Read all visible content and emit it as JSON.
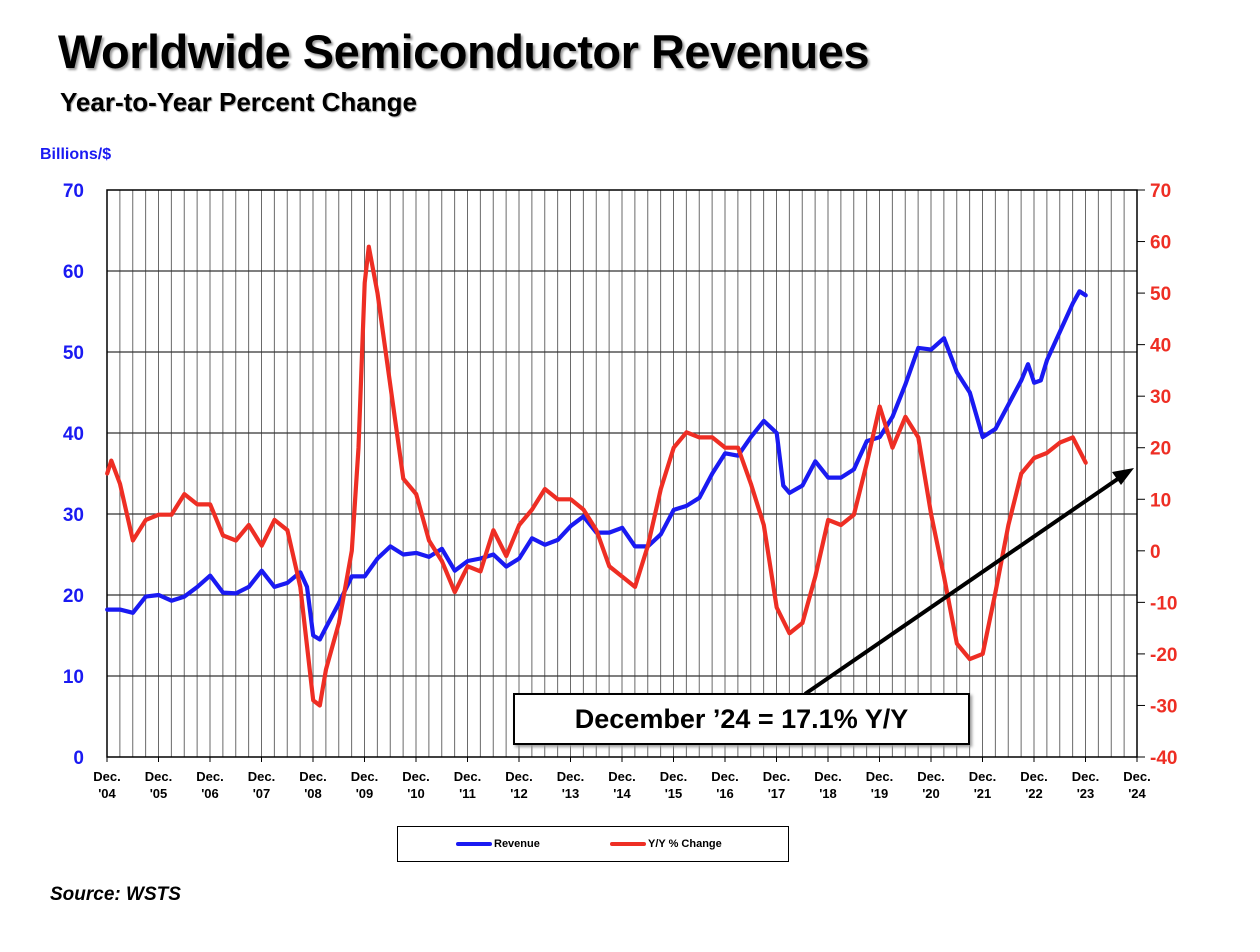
{
  "title": "Worldwide Semiconductor Revenues",
  "subtitle": "Year-to-Year Percent Change",
  "unit_label": "Billions/$",
  "source": "Source: WSTS",
  "callout": "December ’24 = 17.1% Y/Y",
  "legend": {
    "revenue": "Revenue",
    "yoy": "Y/Y % Change"
  },
  "colors": {
    "revenue": "#1a1af2",
    "yoy": "#ee2e24",
    "grid": "#555555"
  },
  "chart_data": {
    "type": "line",
    "title": "Worldwide Semiconductor Revenues",
    "subtitle": "Year-to-Year Percent Change",
    "grid": true,
    "legend_position": "bottom",
    "x_ticks": [
      {
        "line1": "Dec.",
        "line2": "'04"
      },
      {
        "line1": "Dec.",
        "line2": "'05"
      },
      {
        "line1": "Dec.",
        "line2": "'06"
      },
      {
        "line1": "Dec.",
        "line2": "'07"
      },
      {
        "line1": "Dec.",
        "line2": "'08"
      },
      {
        "line1": "Dec.",
        "line2": "'09"
      },
      {
        "line1": "Dec.",
        "line2": "'10"
      },
      {
        "line1": "Dec.",
        "line2": "'11"
      },
      {
        "line1": "Dec.",
        "line2": "'12"
      },
      {
        "line1": "Dec.",
        "line2": "'13"
      },
      {
        "line1": "Dec.",
        "line2": "'14"
      },
      {
        "line1": "Dec.",
        "line2": "'15"
      },
      {
        "line1": "Dec.",
        "line2": "'16"
      },
      {
        "line1": "Dec.",
        "line2": "'17"
      },
      {
        "line1": "Dec.",
        "line2": "'18"
      },
      {
        "line1": "Dec.",
        "line2": "'19"
      },
      {
        "line1": "Dec.",
        "line2": "'20"
      },
      {
        "line1": "Dec.",
        "line2": "'21"
      },
      {
        "line1": "Dec.",
        "line2": "'22"
      },
      {
        "line1": "Dec.",
        "line2": "'23"
      },
      {
        "line1": "Dec.",
        "line2": "'24"
      }
    ],
    "y_left": {
      "label": "Billions/$",
      "range": [
        0,
        70
      ],
      "ticks": [
        0,
        10,
        20,
        30,
        40,
        50,
        60,
        70
      ]
    },
    "y_right": {
      "range": [
        -40,
        70
      ],
      "ticks": [
        -40,
        -30,
        -20,
        -10,
        0,
        10,
        20,
        30,
        40,
        50,
        60,
        70
      ]
    },
    "x_range": [
      2004.917,
      2024.917
    ],
    "series": [
      {
        "name": "Revenue",
        "axis": "left",
        "points": [
          [
            2004.92,
            18.2
          ],
          [
            2005.17,
            18.2
          ],
          [
            2005.42,
            17.8
          ],
          [
            2005.67,
            19.8
          ],
          [
            2005.92,
            20.0
          ],
          [
            2006.17,
            19.3
          ],
          [
            2006.42,
            19.8
          ],
          [
            2006.67,
            21.0
          ],
          [
            2006.92,
            22.4
          ],
          [
            2007.17,
            20.3
          ],
          [
            2007.42,
            20.2
          ],
          [
            2007.67,
            21.0
          ],
          [
            2007.92,
            23.0
          ],
          [
            2008.17,
            21.0
          ],
          [
            2008.42,
            21.5
          ],
          [
            2008.67,
            22.8
          ],
          [
            2008.8,
            21.0
          ],
          [
            2008.92,
            15.0
          ],
          [
            2009.05,
            14.5
          ],
          [
            2009.17,
            16.0
          ],
          [
            2009.42,
            19.0
          ],
          [
            2009.67,
            22.3
          ],
          [
            2009.92,
            22.3
          ],
          [
            2010.17,
            24.5
          ],
          [
            2010.42,
            26.0
          ],
          [
            2010.67,
            25.0
          ],
          [
            2010.92,
            25.2
          ],
          [
            2011.17,
            24.7
          ],
          [
            2011.42,
            25.7
          ],
          [
            2011.67,
            23.0
          ],
          [
            2011.92,
            24.2
          ],
          [
            2012.17,
            24.5
          ],
          [
            2012.42,
            25.0
          ],
          [
            2012.67,
            23.5
          ],
          [
            2012.92,
            24.5
          ],
          [
            2013.17,
            27.0
          ],
          [
            2013.42,
            26.2
          ],
          [
            2013.67,
            26.8
          ],
          [
            2013.92,
            28.5
          ],
          [
            2014.17,
            29.7
          ],
          [
            2014.42,
            27.7
          ],
          [
            2014.67,
            27.7
          ],
          [
            2014.92,
            28.3
          ],
          [
            2015.17,
            26.0
          ],
          [
            2015.42,
            26.0
          ],
          [
            2015.67,
            27.5
          ],
          [
            2015.92,
            30.5
          ],
          [
            2016.17,
            31.0
          ],
          [
            2016.42,
            32.0
          ],
          [
            2016.67,
            35.0
          ],
          [
            2016.92,
            37.5
          ],
          [
            2017.17,
            37.2
          ],
          [
            2017.42,
            39.5
          ],
          [
            2017.67,
            41.5
          ],
          [
            2017.92,
            40.0
          ],
          [
            2018.05,
            33.5
          ],
          [
            2018.17,
            32.6
          ],
          [
            2018.42,
            33.5
          ],
          [
            2018.67,
            36.5
          ],
          [
            2018.92,
            34.5
          ],
          [
            2019.17,
            34.5
          ],
          [
            2019.42,
            35.5
          ],
          [
            2019.67,
            39.0
          ],
          [
            2019.92,
            39.5
          ],
          [
            2020.17,
            42.0
          ],
          [
            2020.42,
            46.0
          ],
          [
            2020.67,
            50.5
          ],
          [
            2020.92,
            50.3
          ],
          [
            2021.17,
            51.7
          ],
          [
            2021.42,
            47.5
          ],
          [
            2021.67,
            45.0
          ],
          [
            2021.92,
            39.5
          ],
          [
            2022.17,
            40.5
          ],
          [
            2022.42,
            43.5
          ],
          [
            2022.67,
            46.5
          ],
          [
            2022.8,
            48.5
          ],
          [
            2022.92,
            46.2
          ],
          [
            2023.05,
            46.5
          ],
          [
            2023.17,
            49.0
          ],
          [
            2023.42,
            52.5
          ],
          [
            2023.67,
            56.0
          ],
          [
            2023.8,
            57.5
          ],
          [
            2023.92,
            57.0
          ]
        ]
      },
      {
        "name": "Y/Y % Change",
        "axis": "right",
        "points": [
          [
            2004.92,
            15
          ],
          [
            2005.0,
            17.5
          ],
          [
            2005.17,
            13
          ],
          [
            2005.42,
            2
          ],
          [
            2005.67,
            6
          ],
          [
            2005.92,
            7
          ],
          [
            2006.17,
            7
          ],
          [
            2006.42,
            11
          ],
          [
            2006.67,
            9
          ],
          [
            2006.92,
            9
          ],
          [
            2007.17,
            3
          ],
          [
            2007.42,
            2
          ],
          [
            2007.67,
            5
          ],
          [
            2007.92,
            1
          ],
          [
            2008.17,
            6
          ],
          [
            2008.42,
            4
          ],
          [
            2008.67,
            -7
          ],
          [
            2008.92,
            -29
          ],
          [
            2009.05,
            -30
          ],
          [
            2009.17,
            -23
          ],
          [
            2009.42,
            -14
          ],
          [
            2009.67,
            0
          ],
          [
            2009.8,
            20
          ],
          [
            2009.92,
            52
          ],
          [
            2010.0,
            59
          ],
          [
            2010.17,
            50
          ],
          [
            2010.42,
            32
          ],
          [
            2010.67,
            14
          ],
          [
            2010.92,
            11
          ],
          [
            2011.17,
            2
          ],
          [
            2011.42,
            -2
          ],
          [
            2011.67,
            -8
          ],
          [
            2011.92,
            -3
          ],
          [
            2012.17,
            -4
          ],
          [
            2012.42,
            4
          ],
          [
            2012.67,
            -1
          ],
          [
            2012.92,
            5
          ],
          [
            2013.17,
            8
          ],
          [
            2013.42,
            12
          ],
          [
            2013.67,
            10
          ],
          [
            2013.92,
            10
          ],
          [
            2014.17,
            8
          ],
          [
            2014.42,
            4
          ],
          [
            2014.67,
            -3
          ],
          [
            2014.92,
            -5
          ],
          [
            2015.17,
            -7
          ],
          [
            2015.42,
            1
          ],
          [
            2015.67,
            12
          ],
          [
            2015.92,
            20
          ],
          [
            2016.17,
            23
          ],
          [
            2016.42,
            22
          ],
          [
            2016.67,
            22
          ],
          [
            2016.92,
            20
          ],
          [
            2017.17,
            20
          ],
          [
            2017.42,
            13
          ],
          [
            2017.67,
            5
          ],
          [
            2017.92,
            -11
          ],
          [
            2018.17,
            -16
          ],
          [
            2018.42,
            -14
          ],
          [
            2018.67,
            -5
          ],
          [
            2018.92,
            6
          ],
          [
            2019.17,
            5
          ],
          [
            2019.42,
            7
          ],
          [
            2019.67,
            17
          ],
          [
            2019.92,
            28
          ],
          [
            2020.17,
            20
          ],
          [
            2020.42,
            26
          ],
          [
            2020.67,
            22
          ],
          [
            2020.92,
            7
          ],
          [
            2021.17,
            -5
          ],
          [
            2021.42,
            -18
          ],
          [
            2021.67,
            -21
          ],
          [
            2021.92,
            -20
          ],
          [
            2022.17,
            -8
          ],
          [
            2022.42,
            5
          ],
          [
            2022.67,
            15
          ],
          [
            2022.92,
            18
          ],
          [
            2023.17,
            19
          ],
          [
            2023.42,
            21
          ],
          [
            2023.67,
            22
          ],
          [
            2023.92,
            17.1
          ]
        ]
      }
    ]
  }
}
